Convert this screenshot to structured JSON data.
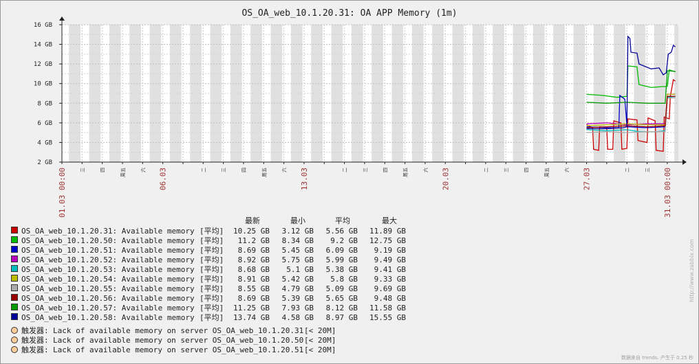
{
  "chart_data": {
    "type": "line",
    "title": "OS_OA_web_10.1.20.31: OA APP Memory (1m)",
    "y_ticks": [
      "2 GB",
      "4 GB",
      "6 GB",
      "8 GB",
      "10 GB",
      "12 GB",
      "14 GB",
      "16 GB"
    ],
    "ylim": [
      2,
      16
    ],
    "date_labels": [
      {
        "label": "01.03 00:00",
        "day": 0,
        "color": "#a03030"
      },
      {
        "label": "06.03",
        "day": 5,
        "color": "#a03030"
      },
      {
        "label": "13.03",
        "day": 12,
        "color": "#a03030"
      },
      {
        "label": "20.03",
        "day": 19,
        "color": "#a03030"
      },
      {
        "label": "27.03",
        "day": 26,
        "color": "#a03030"
      },
      {
        "label": "31.03 00:00",
        "day": 30,
        "color": "#a03030"
      }
    ],
    "weekday_labels": [
      {
        "label": "三",
        "day": 1
      },
      {
        "label": "四",
        "day": 2
      },
      {
        "label": "周五",
        "day": 3
      },
      {
        "label": "六",
        "day": 4
      },
      {
        "label": "二",
        "day": 7
      },
      {
        "label": "三",
        "day": 8
      },
      {
        "label": "四",
        "day": 9
      },
      {
        "label": "周五",
        "day": 10
      },
      {
        "label": "六",
        "day": 11
      },
      {
        "label": "二",
        "day": 14
      },
      {
        "label": "三",
        "day": 15
      },
      {
        "label": "四",
        "day": 16
      },
      {
        "label": "周五",
        "day": 17
      },
      {
        "label": "六",
        "day": 18
      },
      {
        "label": "二",
        "day": 21
      },
      {
        "label": "三",
        "day": 22
      },
      {
        "label": "四",
        "day": 23
      },
      {
        "label": "周五",
        "day": 24
      },
      {
        "label": "六",
        "day": 25
      },
      {
        "label": "二",
        "day": 28
      },
      {
        "label": "三",
        "day": 29
      }
    ],
    "series": [
      {
        "name": "OS_OA_web_10.1.20.31",
        "color": "#cc0000",
        "points": [
          [
            26.0,
            5.8
          ],
          [
            26.3,
            5.5
          ],
          [
            26.35,
            3.3
          ],
          [
            26.6,
            3.2
          ],
          [
            26.65,
            5.6
          ],
          [
            27.0,
            5.5
          ],
          [
            27.05,
            3.3
          ],
          [
            27.3,
            3.3
          ],
          [
            27.35,
            6.2
          ],
          [
            27.7,
            6.0
          ],
          [
            27.75,
            3.3
          ],
          [
            28.0,
            3.4
          ],
          [
            28.05,
            6.4
          ],
          [
            28.5,
            6.3
          ],
          [
            28.55,
            4.2
          ],
          [
            29.0,
            4.0
          ],
          [
            29.05,
            6.5
          ],
          [
            29.4,
            6.2
          ],
          [
            29.45,
            3.2
          ],
          [
            29.8,
            3.1
          ],
          [
            29.85,
            6.6
          ],
          [
            30.1,
            6.4
          ],
          [
            30.15,
            8.7
          ],
          [
            30.3,
            10.4
          ],
          [
            30.4,
            10.25
          ]
        ]
      },
      {
        "name": "OS_OA_web_10.1.20.50",
        "color": "#00bb00",
        "points": [
          [
            26.0,
            8.9
          ],
          [
            26.8,
            8.8
          ],
          [
            27.5,
            8.6
          ],
          [
            28.0,
            8.7
          ],
          [
            28.05,
            11.8
          ],
          [
            28.5,
            11.7
          ],
          [
            28.6,
            9.9
          ],
          [
            29.2,
            9.6
          ],
          [
            29.8,
            9.7
          ],
          [
            30.0,
            9.7
          ],
          [
            30.1,
            11.4
          ],
          [
            30.4,
            11.2
          ]
        ]
      },
      {
        "name": "OS_OA_web_10.1.20.51",
        "color": "#0000cc",
        "points": [
          [
            26.0,
            5.6
          ],
          [
            27.0,
            5.5
          ],
          [
            27.6,
            5.5
          ],
          [
            27.65,
            8.8
          ],
          [
            27.9,
            8.4
          ],
          [
            28.0,
            5.6
          ],
          [
            29.0,
            5.5
          ],
          [
            29.9,
            5.6
          ],
          [
            30.0,
            8.7
          ],
          [
            30.4,
            8.69
          ]
        ]
      },
      {
        "name": "OS_OA_web_10.1.20.52",
        "color": "#bb00bb",
        "points": [
          [
            26.0,
            5.9
          ],
          [
            27.0,
            6.0
          ],
          [
            28.0,
            5.8
          ],
          [
            29.0,
            5.9
          ],
          [
            29.9,
            5.9
          ],
          [
            30.0,
            8.9
          ],
          [
            30.4,
            8.92
          ]
        ]
      },
      {
        "name": "OS_OA_web_10.1.20.53",
        "color": "#00bbbb",
        "points": [
          [
            26.0,
            5.3
          ],
          [
            27.0,
            5.2
          ],
          [
            28.0,
            5.3
          ],
          [
            28.6,
            5.1
          ],
          [
            29.5,
            5.1
          ],
          [
            29.9,
            5.2
          ],
          [
            30.0,
            8.6
          ],
          [
            30.4,
            8.68
          ]
        ]
      },
      {
        "name": "OS_OA_web_10.1.20.54",
        "color": "#bbbb00",
        "points": [
          [
            26.0,
            5.7
          ],
          [
            27.0,
            5.8
          ],
          [
            28.0,
            5.9
          ],
          [
            29.0,
            5.8
          ],
          [
            29.9,
            5.8
          ],
          [
            30.0,
            8.9
          ],
          [
            30.4,
            8.91
          ]
        ]
      },
      {
        "name": "OS_OA_web_10.1.20.55",
        "color": "#aaaaaa",
        "points": [
          [
            26.0,
            5.0
          ],
          [
            27.0,
            5.1
          ],
          [
            28.0,
            5.0
          ],
          [
            29.0,
            5.1
          ],
          [
            29.9,
            5.1
          ],
          [
            30.0,
            8.5
          ],
          [
            30.4,
            8.55
          ]
        ]
      },
      {
        "name": "OS_OA_web_10.1.20.56",
        "color": "#990000",
        "points": [
          [
            26.0,
            5.5
          ],
          [
            27.0,
            5.6
          ],
          [
            28.0,
            5.7
          ],
          [
            29.0,
            5.6
          ],
          [
            29.9,
            5.7
          ],
          [
            30.0,
            8.7
          ],
          [
            30.4,
            8.69
          ]
        ]
      },
      {
        "name": "OS_OA_web_10.1.20.57",
        "color": "#009900",
        "points": [
          [
            26.0,
            8.1
          ],
          [
            27.0,
            8.0
          ],
          [
            28.0,
            8.1
          ],
          [
            29.0,
            8.0
          ],
          [
            29.9,
            8.0
          ],
          [
            30.0,
            11.3
          ],
          [
            30.4,
            11.25
          ]
        ]
      },
      {
        "name": "OS_OA_web_10.1.20.58",
        "color": "#000099",
        "points": [
          [
            26.0,
            5.4
          ],
          [
            27.0,
            5.4
          ],
          [
            27.8,
            5.5
          ],
          [
            28.0,
            5.6
          ],
          [
            28.05,
            14.8
          ],
          [
            28.15,
            14.6
          ],
          [
            28.2,
            13.2
          ],
          [
            28.5,
            13.1
          ],
          [
            28.6,
            12.0
          ],
          [
            29.2,
            11.5
          ],
          [
            29.6,
            11.6
          ],
          [
            29.8,
            10.9
          ],
          [
            29.95,
            11.1
          ],
          [
            30.05,
            13.0
          ],
          [
            30.2,
            13.2
          ],
          [
            30.3,
            13.9
          ],
          [
            30.4,
            13.74
          ]
        ]
      }
    ]
  },
  "legend": {
    "headers": {
      "latest": "最新",
      "min": "最小",
      "avg": "平均",
      "max": "最大"
    },
    "rows": [
      {
        "color": "#cc0000",
        "name": "OS_OA_web_10.1.20.31: Available memory",
        "agg": "[平均]",
        "latest": "10.25 GB",
        "min": "3.12 GB",
        "avg": "5.56 GB",
        "max": "11.89 GB"
      },
      {
        "color": "#00bb00",
        "name": "OS_OA_web_10.1.20.50: Available memory",
        "agg": "[平均]",
        "latest": "11.2 GB",
        "min": "8.34 GB",
        "avg": "9.2 GB",
        "max": "12.75 GB"
      },
      {
        "color": "#0000cc",
        "name": "OS_OA_web_10.1.20.51: Available memory",
        "agg": "[平均]",
        "latest": "8.69 GB",
        "min": "5.45 GB",
        "avg": "6.09 GB",
        "max": "9.19 GB"
      },
      {
        "color": "#bb00bb",
        "name": "OS_OA_web_10.1.20.52: Available memory",
        "agg": "[平均]",
        "latest": "8.92 GB",
        "min": "5.75 GB",
        "avg": "5.99 GB",
        "max": "9.49 GB"
      },
      {
        "color": "#00bbbb",
        "name": "OS_OA_web_10.1.20.53: Available memory",
        "agg": "[平均]",
        "latest": "8.68 GB",
        "min": "5.1 GB",
        "avg": "5.38 GB",
        "max": "9.41 GB"
      },
      {
        "color": "#bbbb00",
        "name": "OS_OA_web_10.1.20.54: Available memory",
        "agg": "[平均]",
        "latest": "8.91 GB",
        "min": "5.42 GB",
        "avg": "5.8 GB",
        "max": "9.33 GB"
      },
      {
        "color": "#aaaaaa",
        "name": "OS_OA_web_10.1.20.55: Available memory",
        "agg": "[平均]",
        "latest": "8.55 GB",
        "min": "4.79 GB",
        "avg": "5.09 GB",
        "max": "9.69 GB"
      },
      {
        "color": "#990000",
        "name": "OS_OA_web_10.1.20.56: Available memory",
        "agg": "[平均]",
        "latest": "8.69 GB",
        "min": "5.39 GB",
        "avg": "5.65 GB",
        "max": "9.48 GB"
      },
      {
        "color": "#009900",
        "name": "OS_OA_web_10.1.20.57: Available memory",
        "agg": "[平均]",
        "latest": "11.25 GB",
        "min": "7.93 GB",
        "avg": "8.12 GB",
        "max": "11.58 GB"
      },
      {
        "color": "#000099",
        "name": "OS_OA_web_10.1.20.58: Available memory",
        "agg": "[平均]",
        "latest": "13.74 GB",
        "min": "4.58 GB",
        "avg": "8.97 GB",
        "max": "15.55 GB"
      }
    ],
    "triggers": [
      {
        "prefix": "触发器:",
        "text": "Lack of available memory on server OS_OA_web_10.1.20.31",
        "cond": "[< 20M]"
      },
      {
        "prefix": "触发器:",
        "text": "Lack of available memory on server OS_OA_web_10.1.20.50",
        "cond": "[< 20M]"
      },
      {
        "prefix": "触发器:",
        "text": "Lack of available memory on server OS_OA_web_10.1.20.51",
        "cond": "[< 20M]"
      }
    ]
  },
  "watermark": "http://www.zabbix.com",
  "footer_note": "数据来自 trends. 产生于 0.25 秒"
}
